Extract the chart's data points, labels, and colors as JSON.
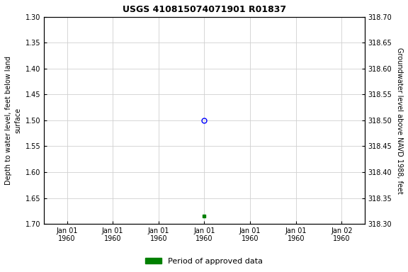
{
  "title": "USGS 410815074071901 R01837",
  "ylabel_left": "Depth to water level, feet below land\nsurface",
  "ylabel_right": "Groundwater level above NAVD 1988, feet",
  "ylim_left": [
    1.3,
    1.7
  ],
  "ylim_right": [
    318.3,
    318.7
  ],
  "yticks_left": [
    1.3,
    1.35,
    1.4,
    1.45,
    1.5,
    1.55,
    1.6,
    1.65,
    1.7
  ],
  "yticks_right": [
    318.7,
    318.65,
    318.6,
    318.55,
    318.5,
    318.45,
    318.4,
    318.35,
    318.3
  ],
  "ytick_labels_left": [
    "1.30",
    "1.35",
    "1.40",
    "1.45",
    "1.50",
    "1.55",
    "1.60",
    "1.65",
    "1.70"
  ],
  "ytick_labels_right": [
    "318.70",
    "318.65",
    "318.60",
    "318.55",
    "318.50",
    "318.45",
    "318.40",
    "318.35",
    "318.30"
  ],
  "xtick_positions": [
    0,
    1,
    2,
    3,
    4,
    5,
    6
  ],
  "xtick_labels": [
    "Jan 01\n1960",
    "Jan 01\n1960",
    "Jan 01\n1960",
    "Jan 01\n1960",
    "Jan 01\n1960",
    "Jan 01\n1960",
    "Jan 02\n1960"
  ],
  "xlim": [
    -0.5,
    6.5
  ],
  "point_open_x": 3,
  "point_open_y": 1.5,
  "point_open_color": "#0000ff",
  "point_filled_x": 3,
  "point_filled_y": 1.685,
  "point_filled_color": "#008000",
  "background_color": "#ffffff",
  "grid_color": "#d0d0d0",
  "legend_label": "Period of approved data",
  "legend_color": "#008000",
  "title_fontsize": 9,
  "tick_fontsize": 7,
  "label_fontsize": 7
}
